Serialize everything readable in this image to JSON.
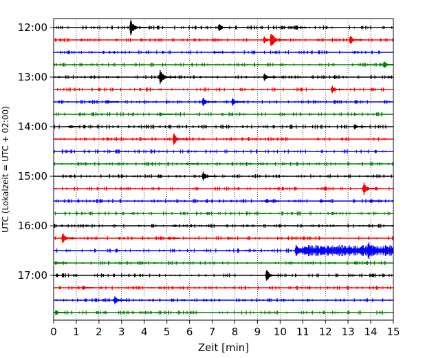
{
  "chart_data": {
    "type": "line",
    "title": "",
    "xlabel": "Zeit  [min]",
    "ylabel": "UTC (Lokalzeit = UTC + 02:00)",
    "xlim": [
      0,
      15
    ],
    "x_ticks": [
      0,
      1,
      2,
      3,
      4,
      5,
      6,
      7,
      8,
      9,
      10,
      11,
      12,
      13,
      14,
      15
    ],
    "x_tick_labels": [
      "0",
      "1",
      "2",
      "3",
      "4",
      "5",
      "6",
      "7",
      "8",
      "9",
      "10",
      "11",
      "12",
      "13",
      "14",
      "15"
    ],
    "y_tick_labels": [
      "12:00",
      "13:00",
      "14:00",
      "15:00",
      "16:00",
      "17:00"
    ],
    "y_tick_rows": [
      0,
      4,
      8,
      12,
      16,
      20
    ],
    "row_interval_min": 15,
    "grid": "vertical dotted at each minute",
    "colors": [
      "#000000",
      "#ff0000",
      "#0000ff",
      "#008000"
    ],
    "rows": [
      {
        "start": "12:00",
        "color": "#000000",
        "events": [
          {
            "t": 3.4,
            "amp": 1.0
          },
          {
            "t": 7.3,
            "amp": 0.6
          },
          {
            "t": 10.7,
            "amp": 0.3
          }
        ]
      },
      {
        "start": "12:15",
        "color": "#ff0000",
        "events": [
          {
            "t": 9.6,
            "amp": 1.0
          },
          {
            "t": 9.3,
            "amp": 0.5
          },
          {
            "t": 13.1,
            "amp": 0.6
          }
        ]
      },
      {
        "start": "12:30",
        "color": "#0000ff",
        "events": [
          {
            "t": 7.1,
            "amp": 0.2
          }
        ]
      },
      {
        "start": "12:45",
        "color": "#008000",
        "events": [
          {
            "t": 14.6,
            "amp": 0.5
          }
        ]
      },
      {
        "start": "13:00",
        "color": "#000000",
        "events": [
          {
            "t": 4.7,
            "amp": 1.0
          },
          {
            "t": 9.3,
            "amp": 0.5
          }
        ]
      },
      {
        "start": "13:15",
        "color": "#ff0000",
        "events": [
          {
            "t": 12.3,
            "amp": 0.5
          }
        ]
      },
      {
        "start": "13:30",
        "color": "#0000ff",
        "events": [
          {
            "t": 6.6,
            "amp": 0.6
          },
          {
            "t": 7.9,
            "amp": 0.5
          },
          {
            "t": 2.4,
            "amp": 0.25
          }
        ]
      },
      {
        "start": "13:45",
        "color": "#008000",
        "events": [
          {
            "t": 4.7,
            "amp": 0.3
          }
        ]
      },
      {
        "start": "14:00",
        "color": "#000000",
        "events": [
          {
            "t": 13.3,
            "amp": 0.4
          },
          {
            "t": 0.7,
            "amp": 0.2
          }
        ]
      },
      {
        "start": "14:15",
        "color": "#ff0000",
        "events": [
          {
            "t": 5.3,
            "amp": 0.8
          }
        ]
      },
      {
        "start": "14:30",
        "color": "#0000ff",
        "events": []
      },
      {
        "start": "14:45",
        "color": "#008000",
        "events": [
          {
            "t": 5.9,
            "amp": 0.2
          }
        ]
      },
      {
        "start": "15:00",
        "color": "#000000",
        "events": [
          {
            "t": 6.6,
            "amp": 0.7
          }
        ]
      },
      {
        "start": "15:15",
        "color": "#ff0000",
        "events": [
          {
            "t": 13.7,
            "amp": 0.8
          }
        ]
      },
      {
        "start": "15:30",
        "color": "#0000ff",
        "events": [
          {
            "t": 9.4,
            "amp": 0.4
          },
          {
            "t": 11.8,
            "amp": 0.3
          },
          {
            "t": 14.0,
            "amp": 0.3
          }
        ]
      },
      {
        "start": "15:45",
        "color": "#008000",
        "events": []
      },
      {
        "start": "16:00",
        "color": "#000000",
        "events": []
      },
      {
        "start": "16:15",
        "color": "#ff0000",
        "events": [
          {
            "t": 0.4,
            "amp": 0.7
          },
          {
            "t": 5.1,
            "amp": 0.3
          }
        ]
      },
      {
        "start": "16:30",
        "color": "#0000ff",
        "events": [
          {
            "t": 10.7,
            "amp": 0.8
          },
          {
            "t": 13.9,
            "amp": 1.2
          }
        ],
        "tremor": [
          10.6,
          15.0
        ]
      },
      {
        "start": "16:45",
        "color": "#008000",
        "events": [
          {
            "t": 0.1,
            "amp": 0.3
          }
        ]
      },
      {
        "start": "17:00",
        "color": "#000000",
        "events": [
          {
            "t": 9.4,
            "amp": 0.8
          }
        ]
      },
      {
        "start": "17:15",
        "color": "#ff0000",
        "events": [
          {
            "t": 1.3,
            "amp": 0.4
          }
        ]
      },
      {
        "start": "17:30",
        "color": "#0000ff",
        "events": [
          {
            "t": 2.7,
            "amp": 0.6
          }
        ]
      },
      {
        "start": "17:45",
        "color": "#008000",
        "events": [
          {
            "t": 0.1,
            "amp": 0.4
          }
        ]
      }
    ]
  }
}
